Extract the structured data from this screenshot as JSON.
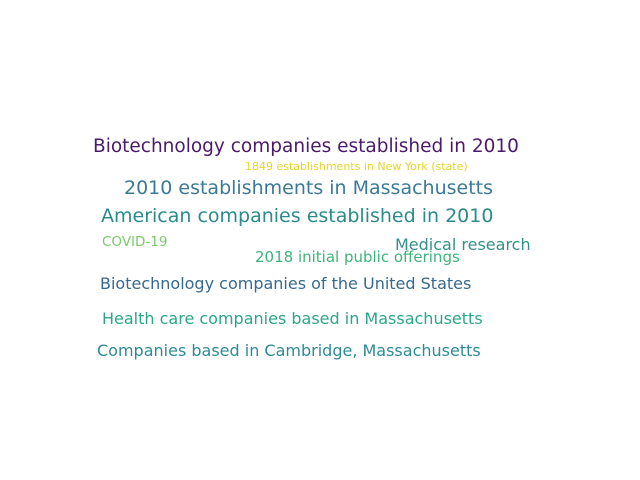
{
  "words": [
    {
      "text": "Biotechnology companies established in 2010",
      "color": "#4a1a6b"
    },
    {
      "text": "1849 establishments in New York (state)",
      "color": "#e6d42a"
    },
    {
      "text": "2010 establishments in Massachusetts",
      "color": "#3b7a96"
    },
    {
      "text": "American companies established in 2010",
      "color": "#2a8b8a"
    },
    {
      "text": "COVID-19",
      "color": "#7cc96a"
    },
    {
      "text": "Medical research",
      "color": "#35908a"
    },
    {
      "text": "2018 initial public offerings",
      "color": "#3fb37a"
    },
    {
      "text": "Biotechnology companies of the United States",
      "color": "#37698f"
    },
    {
      "text": "Health care companies based in Massachusetts",
      "color": "#2ca58a"
    },
    {
      "text": "Companies based in Cambridge, Massachusetts",
      "color": "#2e8a96"
    }
  ]
}
